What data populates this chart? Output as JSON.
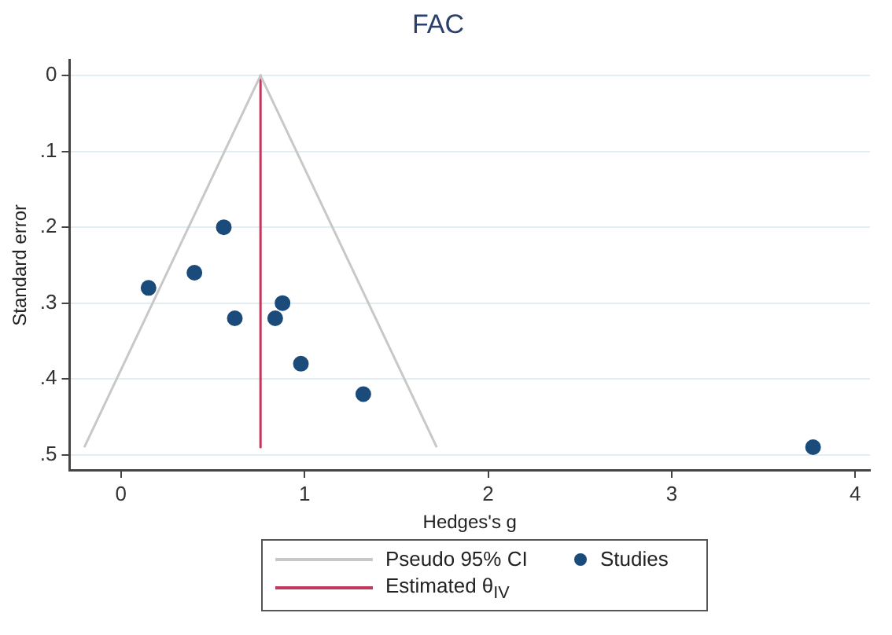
{
  "chart_data": {
    "type": "scatter",
    "title": "FAC",
    "xlabel": "Hedges's g",
    "ylabel": "Standard error",
    "series": [
      {
        "name": "Pseudo 95% CI",
        "type": "line",
        "marker": "none",
        "color": "#c8c8c8",
        "x": [
          -0.2,
          0.76,
          1.72
        ],
        "values": [
          0.49,
          0,
          0.49
        ]
      },
      {
        "name": "Estimated θ$_{IV}$",
        "type": "line",
        "marker": "none",
        "color": "#c0395a",
        "x": [
          0.76,
          0.76
        ],
        "values": [
          0,
          0.49
        ]
      },
      {
        "name": "Studies",
        "color": "#1a4b7a",
        "x": [
          0.56,
          0.4,
          0.15,
          0.88,
          0.62,
          0.84,
          0.98,
          1.32,
          3.77
        ],
        "values": [
          0.2,
          0.26,
          0.28,
          0.3,
          0.32,
          0.32,
          0.38,
          0.42,
          0.49
        ]
      }
    ],
    "xlim": [
      -0.28,
      4.08
    ],
    "ylim": [
      0.52,
      -0.02
    ],
    "xticks": [
      0,
      1,
      2,
      3,
      4
    ],
    "yticks": [
      0,
      {
        "value": 0.1,
        "label": ".1"
      },
      {
        "value": 0.2,
        "label": ".2"
      },
      {
        "value": 0.3,
        "label": ".3"
      },
      {
        "value": 0.4,
        "label": ".4"
      },
      {
        "value": 0.5,
        "label": ".5"
      }
    ],
    "grid": "y",
    "legend": "bottom",
    "marker": "circle",
    "line_style": "solid"
  }
}
